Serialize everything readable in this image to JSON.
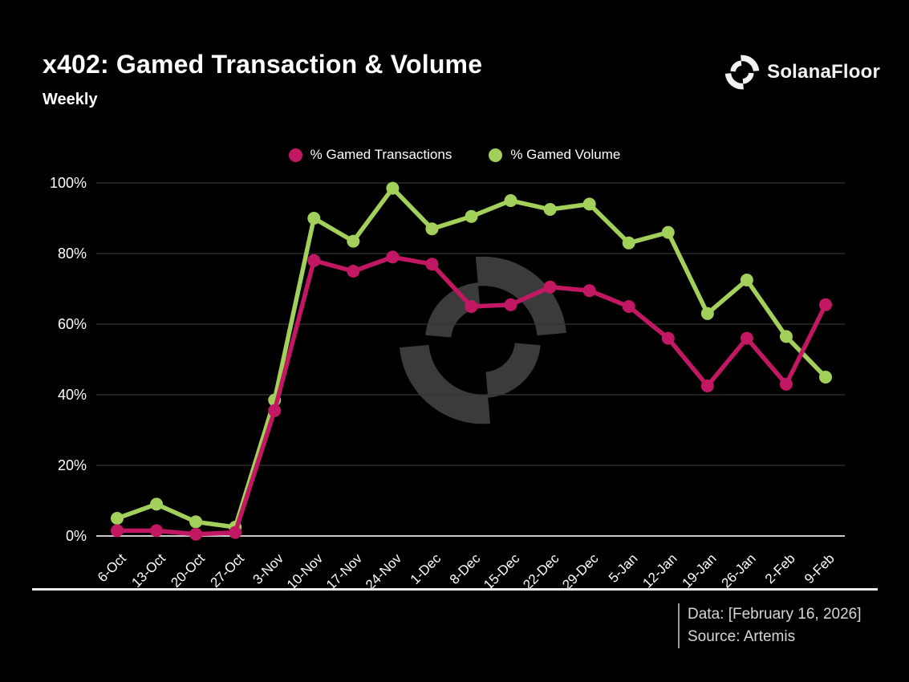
{
  "header": {
    "title": "x402: Gamed Transaction & Volume",
    "subtitle": "Weekly",
    "brand": "SolanaFloor"
  },
  "chart_data": {
    "type": "line",
    "title": "x402: Gamed Transaction & Volume",
    "subtitle": "Weekly",
    "categories": [
      "6-Oct",
      "13-Oct",
      "20-Oct",
      "27-Oct",
      "3-Nov",
      "10-Nov",
      "17-Nov",
      "24-Nov",
      "1-Dec",
      "8-Dec",
      "15-Dec",
      "22-Dec",
      "29-Dec",
      "5-Jan",
      "12-Jan",
      "19-Jan",
      "26-Jan",
      "2-Feb",
      "9-Feb"
    ],
    "series": [
      {
        "name": "% Gamed Transactions",
        "color": "#c21762",
        "values": [
          1.5,
          1.5,
          0.5,
          1,
          35.5,
          78,
          75,
          79,
          77,
          65,
          65.5,
          70.5,
          69.5,
          65,
          56,
          42.5,
          56,
          43,
          65.5
        ]
      },
      {
        "name": "% Gamed Volume",
        "color": "#a3d05a",
        "values": [
          5,
          9,
          4,
          2.5,
          38.5,
          90,
          83.5,
          98.5,
          87,
          90.5,
          95,
          92.5,
          94,
          83,
          86,
          63,
          72.5,
          56.5,
          45
        ]
      }
    ],
    "yticks": [
      0,
      20,
      40,
      60,
      80,
      100
    ],
    "ytick_suffix": "%",
    "ylim": [
      0,
      100
    ],
    "grid": true,
    "legend_position": "top",
    "xlabel": "",
    "ylabel": ""
  },
  "colors": {
    "background": "#000000",
    "gridline": "#343434",
    "axis_line": "#c9c9c9",
    "tick_text": "#ffffff",
    "watermark": "#3b3b3b",
    "brand_icon": "#f2f2f2"
  },
  "footer": {
    "data_line": "Data: [February 16, 2026]",
    "source_line": "Source: Artemis"
  }
}
